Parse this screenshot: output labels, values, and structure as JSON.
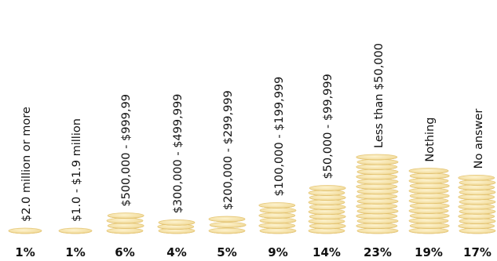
{
  "chart_data": {
    "type": "bar",
    "categories": [
      "$2.0 million or more",
      "$1.0 - $1.9 million",
      "$500,000 - $999,99",
      "$300,000 - $499,999",
      "$200,000 - $299,999",
      "$100,000 - $199,999",
      "$50,000 - $99,999",
      "Less than $50,000",
      "Nothing",
      "No answer"
    ],
    "values": [
      1,
      1,
      6,
      4,
      5,
      9,
      14,
      23,
      19,
      17
    ],
    "value_labels": [
      "1%",
      "1%",
      "6%",
      "4%",
      "5%",
      "9%",
      "14%",
      "23%",
      "19%",
      "17%"
    ],
    "unit": "%",
    "ylim": [
      0,
      23
    ],
    "grid": false,
    "legend": "none",
    "mark_style": "stacked gold coins",
    "colors": {
      "coin_face": "#f6e6b2",
      "coin_edge": "#e6c777",
      "coin_shadow": "#c9a24a",
      "text": "#111111"
    }
  }
}
